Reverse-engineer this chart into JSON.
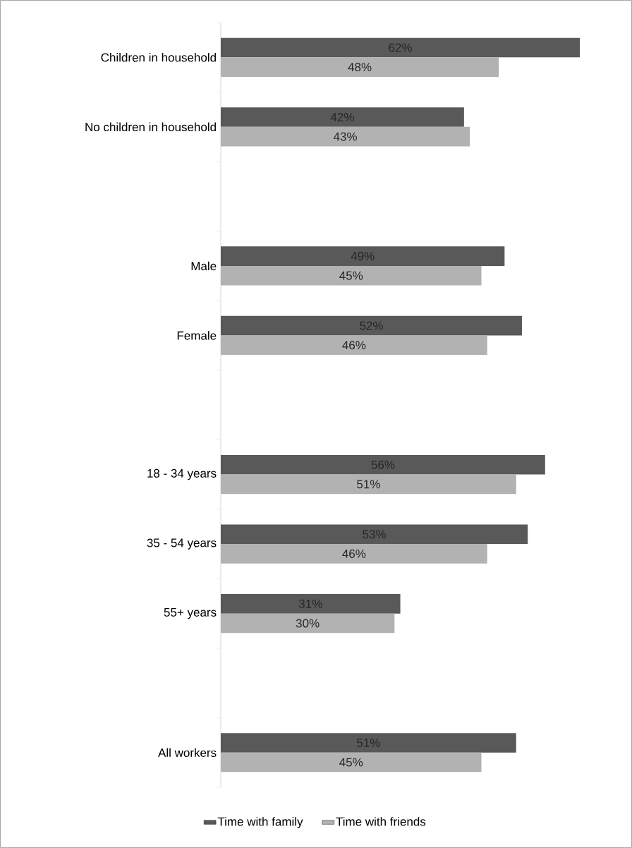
{
  "chart_data": {
    "type": "bar",
    "orientation": "horizontal",
    "legend": "bottom",
    "categories": [
      "Children in household",
      "No children in household",
      null,
      "Male",
      "Female",
      null,
      "18 - 34 years",
      "35 - 54 years",
      "55+ years",
      null,
      "All workers"
    ],
    "series": [
      {
        "name": "Time with family",
        "color": "#595959",
        "values": [
          62,
          42,
          null,
          49,
          52,
          null,
          56,
          53,
          31,
          null,
          51
        ],
        "value_labels": [
          "62%",
          "42%",
          null,
          "49%",
          "52%",
          null,
          "56%",
          "53%",
          "31%",
          null,
          "51%"
        ]
      },
      {
        "name": "Time with friends",
        "color": "#b2b2b2",
        "values": [
          48,
          43,
          null,
          45,
          46,
          null,
          51,
          46,
          30,
          null,
          45
        ],
        "value_labels": [
          "48%",
          "43%",
          null,
          "45%",
          "46%",
          null,
          "51%",
          "46%",
          "30%",
          null,
          "45%"
        ]
      }
    ]
  }
}
